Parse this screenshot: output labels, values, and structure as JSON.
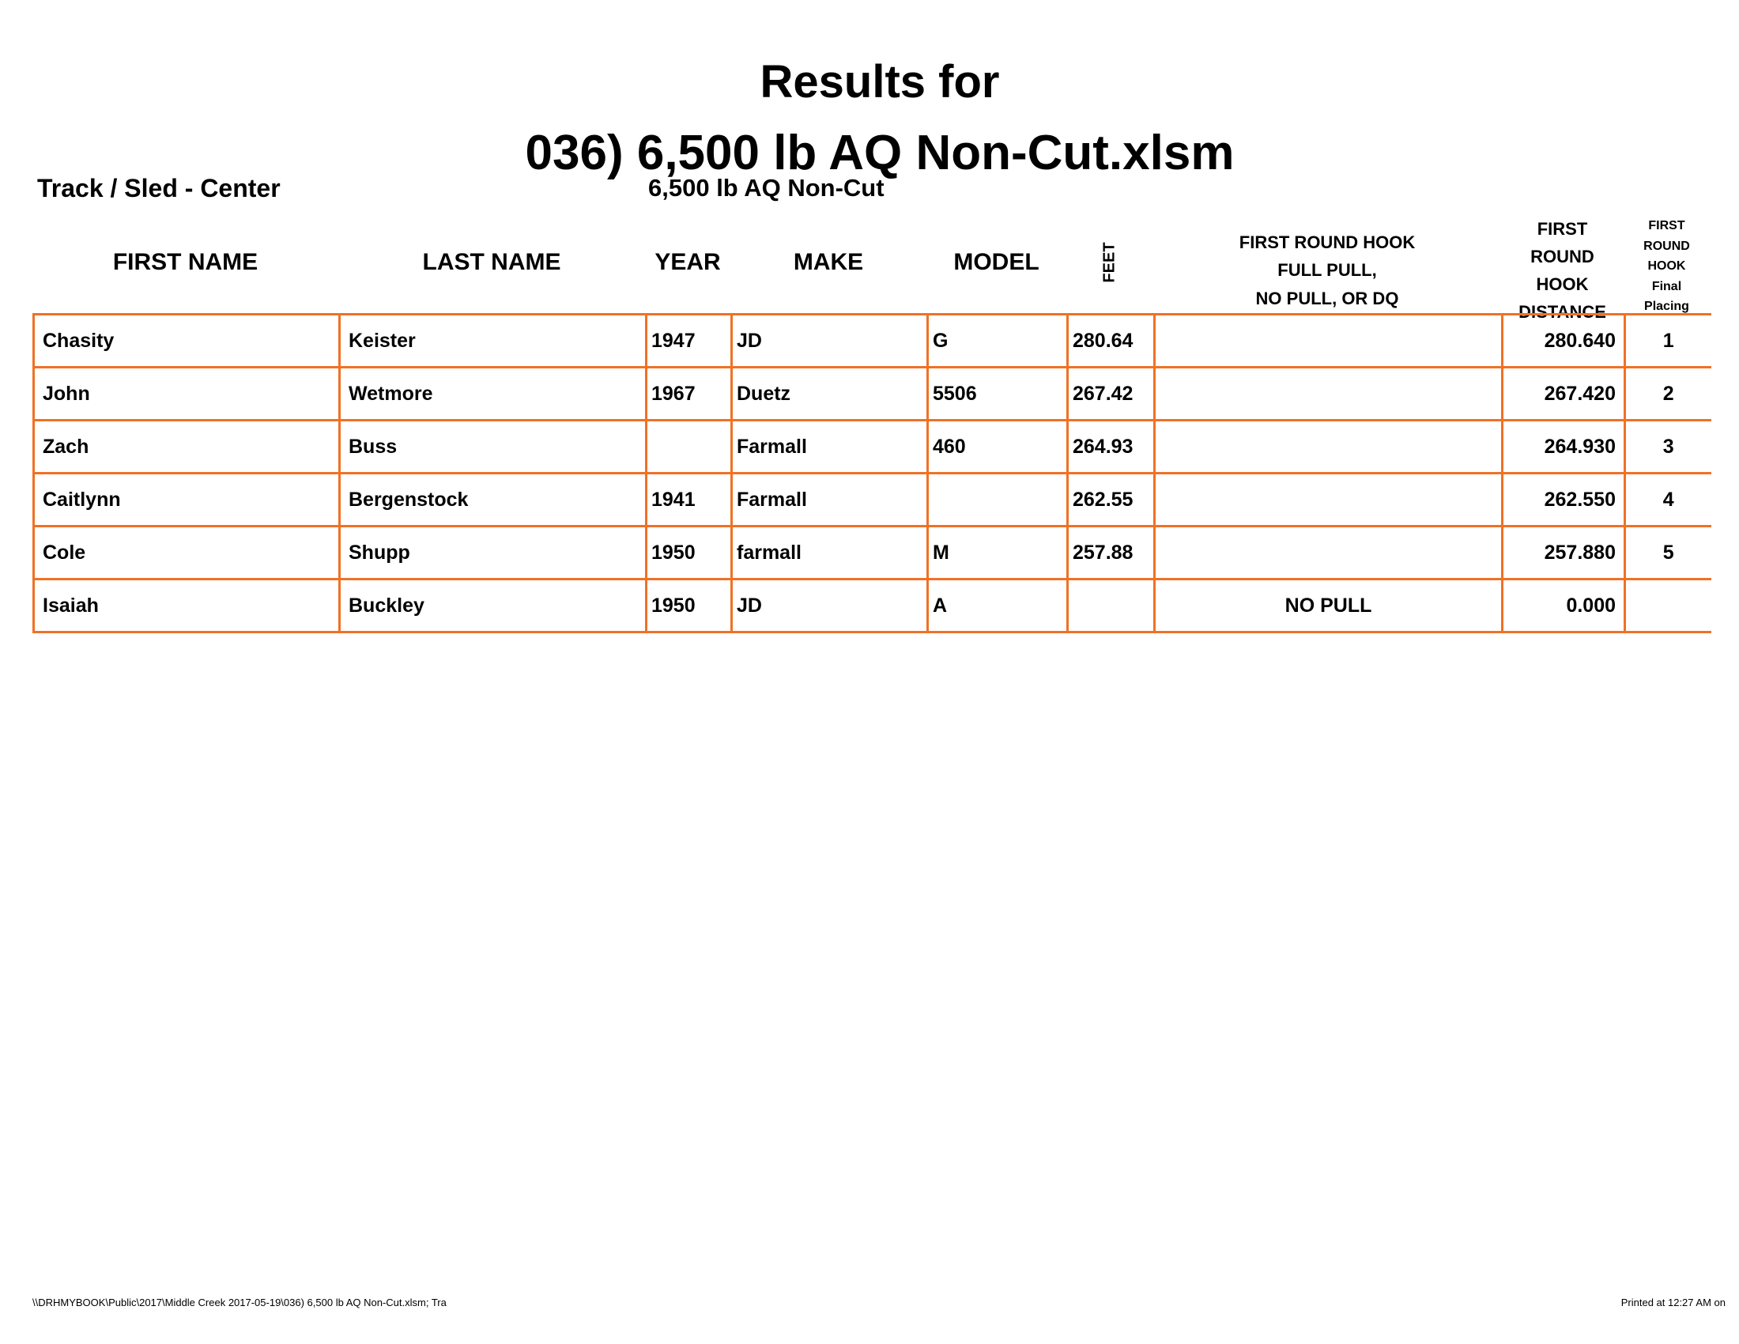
{
  "header": {
    "title": [
      "Results for",
      "036) 6,500 lb AQ Non-Cut.xlsm"
    ],
    "track": "Track / Sled - Center",
    "class_name": "6,500 lb AQ Non-Cut"
  },
  "table": {
    "columns": [
      "FIRST NAME",
      "LAST NAME",
      "YEAR",
      "MAKE",
      "MODEL",
      "FEET",
      "FIRST ROUND HOOK\nFULL PULL,\nNO PULL, OR DQ",
      "FIRST\nROUND\nHOOK\nDISTANCE",
      "FIRST\nROUND\nHOOK\nFinal\nPlacing"
    ],
    "rows": [
      [
        "Chasity",
        "Keister",
        "1947",
        "JD",
        "G",
        "280.64",
        null,
        "280.640",
        "1"
      ],
      [
        "John",
        "Wetmore",
        "1967",
        "Duetz",
        "5506",
        "267.42",
        null,
        "267.420",
        "2"
      ],
      [
        "Zach",
        "Buss",
        null,
        "Farmall",
        "460",
        "264.93",
        null,
        "264.930",
        "3"
      ],
      [
        "Caitlynn",
        "Bergenstock",
        "1941",
        "Farmall",
        null,
        "262.55",
        null,
        "262.550",
        "4"
      ],
      [
        "Cole",
        "Shupp",
        "1950",
        "farmall",
        "M",
        "257.88",
        null,
        "257.880",
        "5"
      ],
      [
        "Isaiah",
        "Buckley",
        "1950",
        "JD",
        "A",
        null,
        "NO PULL",
        "0.000",
        null
      ]
    ]
  },
  "footer": {
    "path": "\\\\DRHMYBOOK\\Public\\2017\\Middle Creek 2017-05-19\\036) 6,500 lb AQ Non-Cut.xlsm;  Tra",
    "printed": "Printed at 12:27 AM on"
  }
}
